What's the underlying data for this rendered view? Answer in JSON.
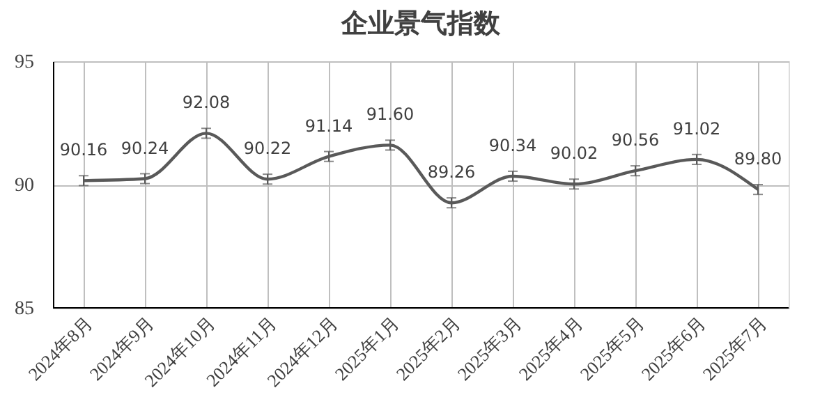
{
  "chart_data": {
    "type": "line",
    "title": "企业景气指数",
    "categories": [
      "2024年8月",
      "2024年9月",
      "2024年10月",
      "2024年11月",
      "2024年12月",
      "2025年1月",
      "2025年2月",
      "2025年3月",
      "2025年4月",
      "2025年5月",
      "2025年6月",
      "2025年7月"
    ],
    "series": [
      {
        "color": "#595959",
        "values": [
          90.16,
          90.24,
          92.08,
          90.22,
          91.14,
          91.6,
          89.26,
          90.34,
          90.02,
          90.56,
          91.02,
          89.8
        ],
        "errors": [
          0.2,
          0.2,
          0.2,
          0.2,
          0.2,
          0.2,
          0.2,
          0.2,
          0.2,
          0.2,
          0.2,
          0.2
        ],
        "value_labels": [
          "90.16",
          "90.24",
          "92.08",
          "90.22",
          "91.14",
          "91.60",
          "89.26",
          "90.34",
          "90.02",
          "90.56",
          "91.02",
          "89.80"
        ]
      }
    ],
    "ylim": [
      85,
      95
    ],
    "yticks": [
      85,
      90,
      95
    ],
    "grid": true,
    "marker": "none",
    "line_style": "solid"
  }
}
